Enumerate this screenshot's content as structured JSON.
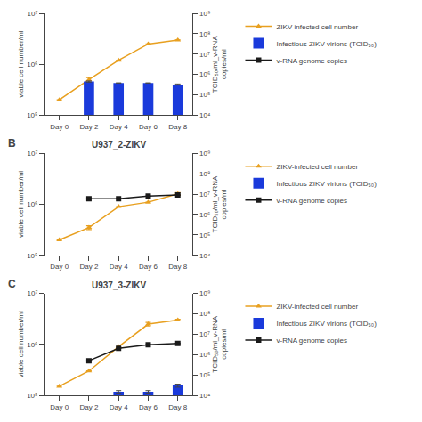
{
  "chart_data": [
    {
      "type": "line",
      "categories": [
        "Day 0",
        "Day 2",
        "Day 4",
        "Day 6",
        "Day 8"
      ],
      "ylabel": "viable cell number/ml",
      "y2label": "TCID₅₀/ml_v-RNA\ncopies/ml",
      "log": true,
      "grid": false,
      "legend": "right",
      "ylim": [
        100000,
        10000000
      ],
      "yticks": [
        {
          "value": 100000,
          "label": "10⁵"
        },
        {
          "value": 1000000,
          "label": "10⁶"
        },
        {
          "value": 10000000,
          "label": "10⁷"
        }
      ],
      "y2lim": [
        10000,
        1000000000
      ],
      "y2ticks": [
        {
          "value": 10000,
          "label": "10⁴"
        },
        {
          "value": 100000,
          "label": "10⁵"
        },
        {
          "value": 1000000,
          "label": "10⁶"
        },
        {
          "value": 10000000,
          "label": "10⁷"
        },
        {
          "value": 100000000,
          "label": "10⁸"
        },
        {
          "value": 1000000000,
          "label": "10⁹"
        }
      ],
      "series": [
        {
          "name": "ZIKV-infected cell number",
          "type": "line",
          "color": "#E8A020",
          "marker": "triangle-up",
          "values": [
            200000,
            500000,
            1200000,
            2500000,
            3000000
          ],
          "errors": [
            0,
            50000,
            0,
            0,
            0
          ]
        },
        {
          "name": "Infectious ZIKV virions (TCID₅₀)",
          "type": "bar",
          "color": "#1a3adb",
          "axis": "y2",
          "values": [
            null,
            450000,
            380000,
            380000,
            320000
          ],
          "errors": [
            null,
            30000,
            0,
            0,
            20000
          ]
        },
        {
          "name": "v-RNA genome copies",
          "type": "line",
          "color": "#1a1a1a",
          "marker": "square",
          "axis": "y2",
          "values": [
            null,
            null,
            null,
            null,
            null
          ],
          "errors": [
            0,
            0,
            0,
            0,
            0
          ]
        }
      ]
    },
    {
      "type": "line",
      "title": "U937_2-ZIKV",
      "annotations": [
        "B"
      ],
      "categories": [
        "Day 0",
        "Day 2",
        "Day 4",
        "Day 6",
        "Day 8"
      ],
      "ylabel": "viable cell number/ml",
      "y2label": "TCID₅₀/ml_v-RNA\ncopies/ml",
      "log": true,
      "grid": false,
      "legend": "right",
      "ylim": [
        100000,
        10000000
      ],
      "yticks": [
        {
          "value": 100000,
          "label": "10⁵"
        },
        {
          "value": 1000000,
          "label": "10⁶"
        },
        {
          "value": 10000000,
          "label": "10⁷"
        }
      ],
      "y2lim": [
        10000,
        1000000000
      ],
      "y2ticks": [
        {
          "value": 10000,
          "label": "10⁴"
        },
        {
          "value": 100000,
          "label": "10⁵"
        },
        {
          "value": 1000000,
          "label": "10⁶"
        },
        {
          "value": 10000000,
          "label": "10⁷"
        },
        {
          "value": 100000000,
          "label": "10⁸"
        },
        {
          "value": 1000000000,
          "label": "10⁹"
        }
      ],
      "series": [
        {
          "name": "ZIKV-infected cell number",
          "type": "line",
          "color": "#E8A020",
          "marker": "triangle-up",
          "values": [
            200000,
            350000,
            900000,
            1100000,
            1600000
          ],
          "errors": [
            0,
            30000,
            0,
            0,
            100000
          ]
        },
        {
          "name": "Infectious ZIKV virions (TCID₅₀)",
          "type": "bar",
          "color": "#1a3adb",
          "axis": "y2",
          "values": [
            null,
            null,
            null,
            null,
            null
          ],
          "errors": [
            null,
            null,
            null,
            null,
            null
          ]
        },
        {
          "name": "v-RNA genome copies",
          "type": "line",
          "color": "#1a1a1a",
          "marker": "square",
          "axis": "y2",
          "values": [
            null,
            6000000,
            6000000,
            8000000,
            9000000
          ],
          "errors": [
            0,
            0,
            0,
            0,
            0
          ]
        }
      ]
    },
    {
      "type": "line",
      "title": "U937_3-ZIKV",
      "annotations": [
        "C"
      ],
      "categories": [
        "Day 0",
        "Day 2",
        "Day 4",
        "Day 6",
        "Day 8"
      ],
      "ylabel": "viable cell number/ml",
      "y2label": "TCID₅₀/ml_v-RNA\ncopies/ml",
      "log": true,
      "grid": false,
      "legend": "right",
      "ylim": [
        100000,
        10000000
      ],
      "yticks": [
        {
          "value": 100000,
          "label": "10⁵"
        },
        {
          "value": 1000000,
          "label": "10⁶"
        },
        {
          "value": 10000000,
          "label": "10⁷"
        }
      ],
      "y2lim": [
        10000,
        1000000000
      ],
      "y2ticks": [
        {
          "value": 10000,
          "label": "10⁴"
        },
        {
          "value": 100000,
          "label": "10⁵"
        },
        {
          "value": 1000000,
          "label": "10⁶"
        },
        {
          "value": 10000000,
          "label": "10⁷"
        },
        {
          "value": 100000000,
          "label": "10⁸"
        },
        {
          "value": 1000000000,
          "label": "10⁹"
        }
      ],
      "series": [
        {
          "name": "ZIKV-infected cell number",
          "type": "line",
          "color": "#E8A020",
          "marker": "triangle-up",
          "values": [
            150000,
            300000,
            900000,
            2500000,
            3000000
          ],
          "errors": [
            0,
            0,
            0,
            200000,
            100000
          ]
        },
        {
          "name": "Infectious ZIKV virions (TCID₅₀)",
          "type": "bar",
          "color": "#1a3adb",
          "axis": "y2",
          "values": [
            null,
            null,
            15000,
            15000,
            30000
          ],
          "errors": [
            null,
            null,
            2000,
            2000,
            5000
          ]
        },
        {
          "name": "v-RNA genome copies",
          "type": "line",
          "color": "#1a1a1a",
          "marker": "square",
          "axis": "y2",
          "values": [
            null,
            500000,
            2000000,
            3000000,
            3500000
          ],
          "errors": [
            0,
            0,
            0,
            0,
            0
          ]
        }
      ]
    }
  ]
}
